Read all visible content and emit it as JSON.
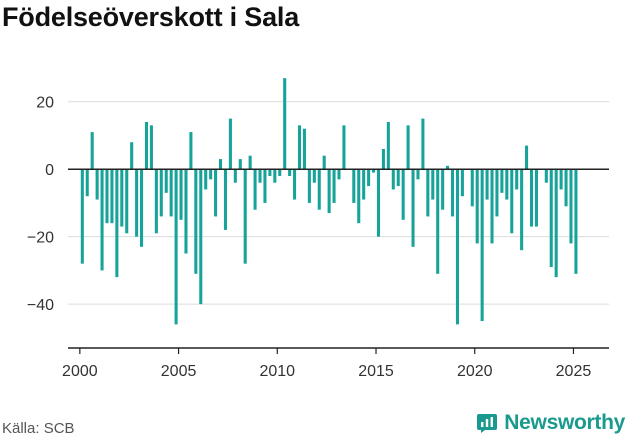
{
  "title": "Födelseöverskott i Sala",
  "source": "Källa: SCB",
  "brand": {
    "name": "Newsworthy",
    "color": "#1a9a8e"
  },
  "bar_color": "#17a39a",
  "chart_data": {
    "type": "bar",
    "title": "Födelseöverskott i Sala",
    "xlabel": "",
    "ylabel": "",
    "xlim": [
      1999.4,
      2026.8
    ],
    "ylim": [
      -53,
      30
    ],
    "yticks": [
      20,
      0,
      -20,
      -40
    ],
    "yticklabels": [
      "20",
      "0",
      "−20",
      "−40"
    ],
    "xticks": [
      2000,
      2005,
      2010,
      2015,
      2020,
      2025
    ],
    "xticklabels": [
      "2000",
      "2005",
      "2010",
      "2015",
      "2020",
      "2025"
    ],
    "grid": true,
    "bar_period": "quarter",
    "x": [
      2000.125,
      2000.375,
      2000.625,
      2000.875,
      2001.125,
      2001.375,
      2001.625,
      2001.875,
      2002.125,
      2002.375,
      2002.625,
      2002.875,
      2003.125,
      2003.375,
      2003.625,
      2003.875,
      2004.125,
      2004.375,
      2004.625,
      2004.875,
      2005.125,
      2005.375,
      2005.625,
      2005.875,
      2006.125,
      2006.375,
      2006.625,
      2006.875,
      2007.125,
      2007.375,
      2007.625,
      2007.875,
      2008.125,
      2008.375,
      2008.625,
      2008.875,
      2009.125,
      2009.375,
      2009.625,
      2009.875,
      2010.125,
      2010.375,
      2010.625,
      2010.875,
      2011.125,
      2011.375,
      2011.625,
      2011.875,
      2012.125,
      2012.375,
      2012.625,
      2012.875,
      2013.125,
      2013.375,
      2013.625,
      2013.875,
      2014.125,
      2014.375,
      2014.625,
      2014.875,
      2015.125,
      2015.375,
      2015.625,
      2015.875,
      2016.125,
      2016.375,
      2016.625,
      2016.875,
      2017.125,
      2017.375,
      2017.625,
      2017.875,
      2018.125,
      2018.375,
      2018.625,
      2018.875,
      2019.125,
      2019.375,
      2019.625,
      2019.875,
      2020.125,
      2020.375,
      2020.625,
      2020.875,
      2021.125,
      2021.375,
      2021.625,
      2021.875,
      2022.125,
      2022.375,
      2022.625,
      2022.875,
      2023.125,
      2023.375,
      2023.625,
      2023.875,
      2024.125,
      2024.375,
      2024.625,
      2024.875,
      2025.125
    ],
    "values": [
      -28,
      -8,
      11,
      -9,
      -30,
      -16,
      -16,
      -32,
      -17,
      -19,
      8,
      -20,
      -23,
      14,
      13,
      -19,
      -14,
      -7,
      -14,
      -46,
      -15,
      -25,
      11,
      -31,
      -40,
      -6,
      -3,
      -14,
      3,
      -18,
      15,
      -4,
      3,
      -28,
      4,
      -12,
      -4,
      -10,
      -2,
      -4,
      -2,
      27,
      -2,
      -9,
      13,
      12,
      -10,
      -4,
      -12,
      4,
      -13,
      -10,
      -3,
      13,
      0,
      -10,
      -16,
      -9,
      -5,
      -1,
      -20,
      6,
      14,
      -6,
      -5,
      -15,
      13,
      -23,
      -3,
      15,
      -14,
      -9,
      -31,
      -12,
      1,
      -14,
      -46,
      -8,
      0,
      -11,
      -22,
      -45,
      -9,
      -22,
      -14,
      -7,
      -9,
      -19,
      -6,
      -24,
      7,
      -17,
      -17,
      0,
      -4,
      -29,
      -32,
      -6,
      -11,
      -22,
      -31
    ]
  }
}
